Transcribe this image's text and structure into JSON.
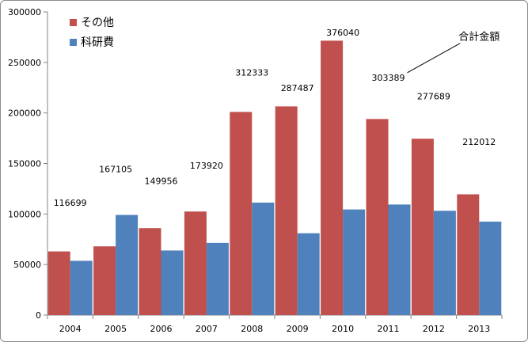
{
  "chart_data": {
    "type": "bar",
    "categories": [
      "2004",
      "2005",
      "2006",
      "2007",
      "2008",
      "2009",
      "2010",
      "2011",
      "2012",
      "2013"
    ],
    "series": [
      {
        "name": "その他",
        "color": "#c0504d",
        "values": [
          63000,
          68000,
          86000,
          102500,
          201000,
          206500,
          271500,
          194000,
          174500,
          119500
        ]
      },
      {
        "name": "科研費",
        "color": "#4f81bd",
        "values": [
          53700,
          99100,
          63900,
          71400,
          111300,
          81000,
          104500,
          109400,
          103200,
          92500
        ]
      }
    ],
    "totals": [
      "116699",
      "167105",
      "149956",
      "173920",
      "312333",
      "287487",
      "376040",
      "303389",
      "277689",
      "212012"
    ],
    "total_positions": [
      {
        "x": "2004",
        "y": 108000
      },
      {
        "x": "2005",
        "y": 141500
      },
      {
        "x": "2006",
        "y": 129500
      },
      {
        "x": "2007",
        "y": 145000
      },
      {
        "x": "2008",
        "y": 237000
      },
      {
        "x": "2009",
        "y": 221500
      },
      {
        "x": "2010",
        "y": 276500
      },
      {
        "x": "2011",
        "y": 232000
      },
      {
        "x": "2012",
        "y": 213500
      },
      {
        "x": "2013",
        "y": 168500
      }
    ],
    "annotation": {
      "text": "合計金額",
      "x": "2013",
      "y": 272000
    },
    "ylim": [
      0,
      300000
    ],
    "yticks": [
      0,
      50000,
      100000,
      150000,
      200000,
      250000,
      300000
    ],
    "grid": false,
    "legend_position": "top-left"
  }
}
